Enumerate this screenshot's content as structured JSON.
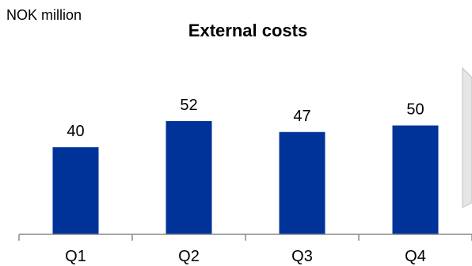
{
  "chart_data": {
    "type": "bar",
    "unit_label": "NOK million",
    "title": "External costs",
    "categories": [
      "Q1",
      "Q2",
      "Q3",
      "Q4"
    ],
    "values": [
      40,
      52,
      47,
      50
    ],
    "ylim": [
      0,
      100
    ],
    "grid": false,
    "legend": "none",
    "bar_color": "#003399",
    "axis_color": "#888888"
  }
}
